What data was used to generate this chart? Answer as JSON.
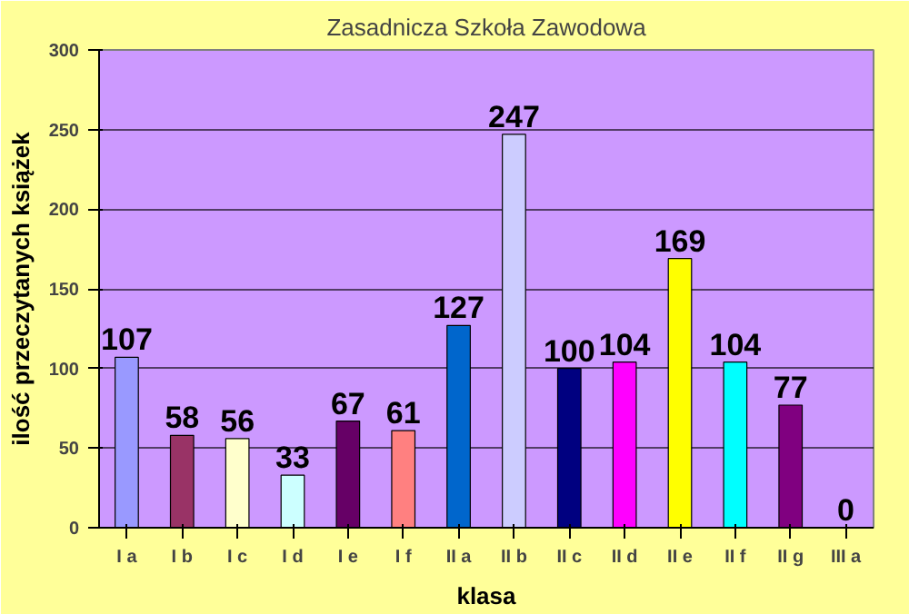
{
  "chart_data": {
    "type": "bar",
    "title": "Zasadnicza Szkoła Zawodowa",
    "xlabel": "klasa",
    "ylabel": "ilość przeczytanych książek",
    "categories": [
      "I a",
      "I b",
      "I c",
      "I d",
      "I e",
      "I f",
      "II a",
      "II b",
      "II c",
      "II d",
      "II e",
      "II f",
      "II g",
      "III a"
    ],
    "values": [
      107,
      58,
      56,
      33,
      67,
      61,
      127,
      247,
      100,
      104,
      169,
      104,
      77,
      0
    ],
    "colors": [
      "#9999ff",
      "#993366",
      "#ffffcc",
      "#ccffff",
      "#660066",
      "#ff8080",
      "#0066cc",
      "#ccccff",
      "#000080",
      "#ff00ff",
      "#ffff00",
      "#00ffff",
      "#800080",
      "#000000"
    ],
    "ylim": [
      0,
      300
    ],
    "yticks": [
      0,
      50,
      100,
      150,
      200,
      250,
      300
    ],
    "grid": "y",
    "data_labels": true
  }
}
